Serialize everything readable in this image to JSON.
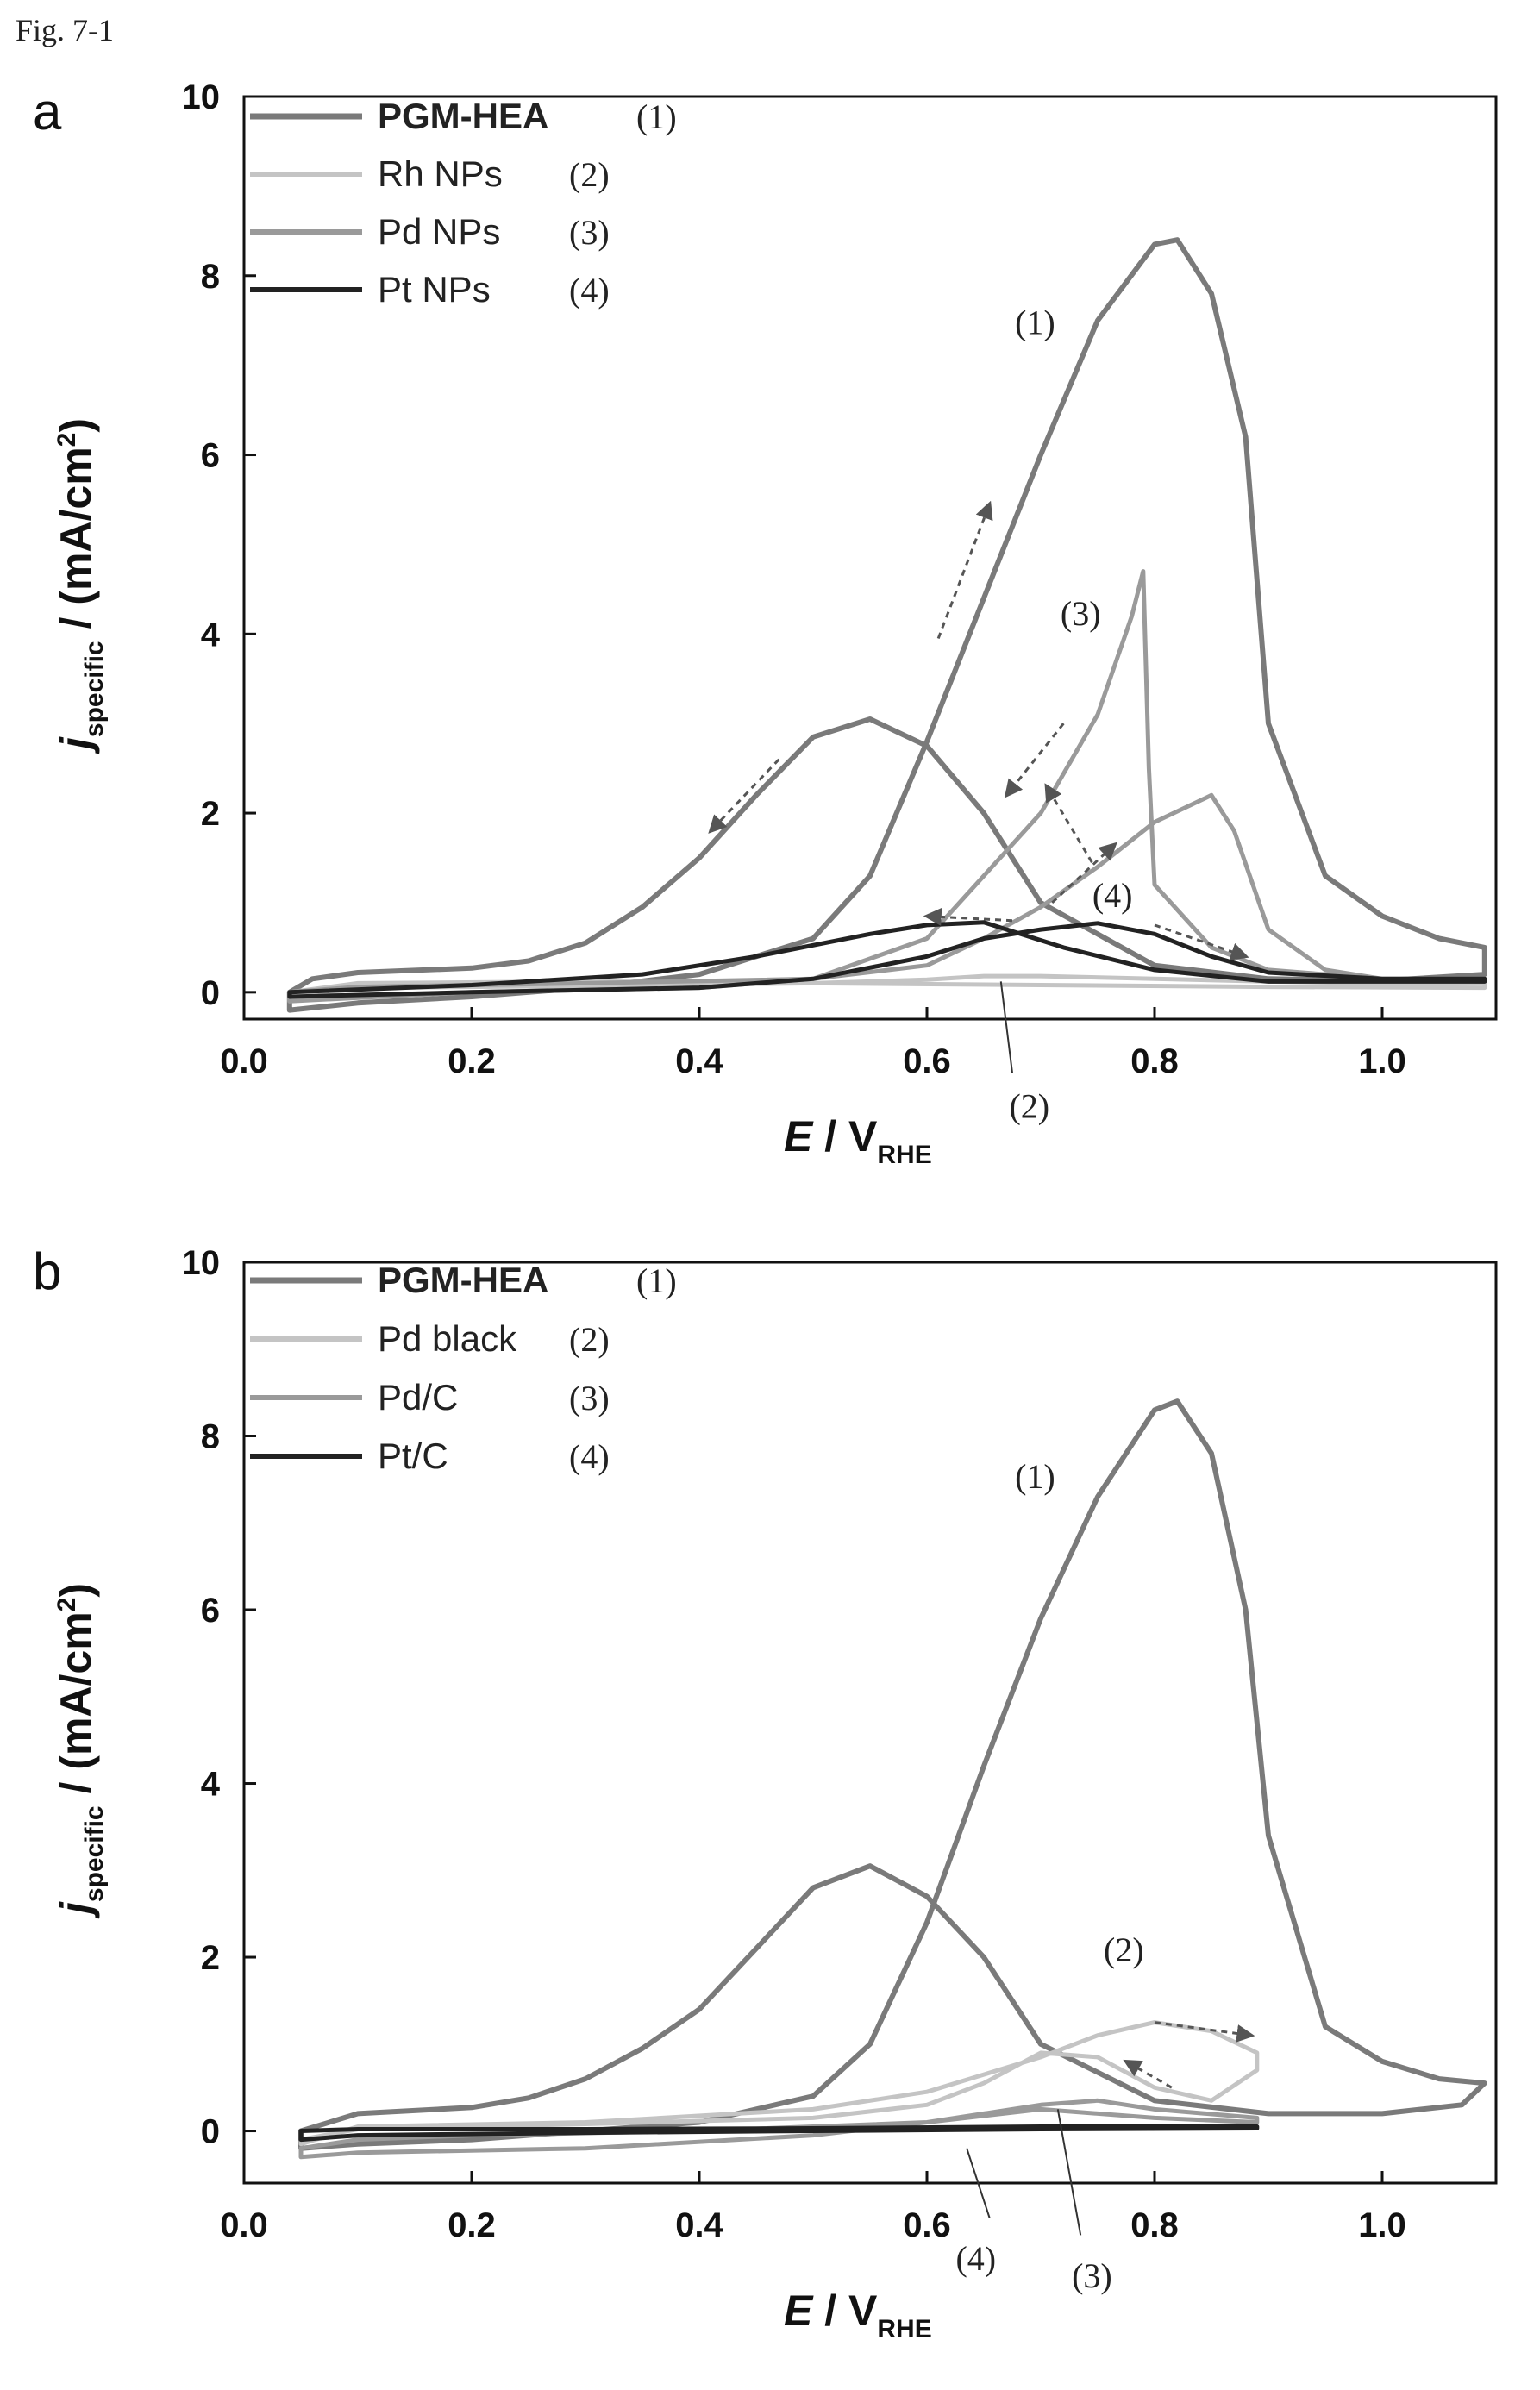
{
  "figure_label": "Fig. 7-1",
  "chart_data": [
    {
      "panel": "a",
      "type": "line",
      "xlabel": "E / V",
      "xlabel_sub": "RHE",
      "ylabel": "j",
      "ylabel_sub": "specific",
      "ylabel_unit": " / (mA/cm",
      "ylabel_sup": "2",
      "ylabel_close": ")",
      "xlim": [
        0.0,
        1.1
      ],
      "ylim": [
        -0.3,
        10
      ],
      "xticks": [
        "0.0",
        "0.2",
        "0.4",
        "0.6",
        "0.8",
        "1.0"
      ],
      "xtick_values": [
        0.0,
        0.2,
        0.4,
        0.6,
        0.8,
        1.0
      ],
      "yticks": [
        "0",
        "2",
        "4",
        "6",
        "8",
        "10"
      ],
      "ytick_values": [
        0,
        2,
        4,
        6,
        8,
        10
      ],
      "legend_position": "top-left",
      "series": [
        {
          "name": "PGM-HEA",
          "num": "(1)",
          "bold": true,
          "color": "#7a7a7a",
          "width": 6,
          "points": [
            [
              0.04,
              -0.2
            ],
            [
              0.1,
              -0.12
            ],
            [
              0.2,
              -0.05
            ],
            [
              0.3,
              0.05
            ],
            [
              0.4,
              0.2
            ],
            [
              0.5,
              0.6
            ],
            [
              0.55,
              1.3
            ],
            [
              0.6,
              2.8
            ],
            [
              0.65,
              4.4
            ],
            [
              0.7,
              6.0
            ],
            [
              0.75,
              7.5
            ],
            [
              0.8,
              8.35
            ],
            [
              0.82,
              8.4
            ],
            [
              0.85,
              7.8
            ],
            [
              0.88,
              6.2
            ],
            [
              0.9,
              3.0
            ],
            [
              0.95,
              1.3
            ],
            [
              1.0,
              0.85
            ],
            [
              1.05,
              0.6
            ],
            [
              1.09,
              0.5
            ],
            [
              1.09,
              0.2
            ],
            [
              1.0,
              0.13
            ],
            [
              0.9,
              0.15
            ],
            [
              0.8,
              0.3
            ],
            [
              0.7,
              1.0
            ],
            [
              0.65,
              2.0
            ],
            [
              0.6,
              2.75
            ],
            [
              0.55,
              3.05
            ],
            [
              0.5,
              2.85
            ],
            [
              0.45,
              2.2
            ],
            [
              0.4,
              1.5
            ],
            [
              0.35,
              0.95
            ],
            [
              0.3,
              0.55
            ],
            [
              0.25,
              0.35
            ],
            [
              0.2,
              0.27
            ],
            [
              0.1,
              0.22
            ],
            [
              0.06,
              0.15
            ],
            [
              0.04,
              0.0
            ]
          ]
        },
        {
          "name": "Rh NPs",
          "num": "(2)",
          "bold": false,
          "color": "#c4c4c4",
          "width": 5,
          "points": [
            [
              0.04,
              -0.1
            ],
            [
              0.1,
              0.05
            ],
            [
              0.3,
              0.07
            ],
            [
              0.5,
              0.1
            ],
            [
              0.6,
              0.14
            ],
            [
              0.65,
              0.18
            ],
            [
              0.7,
              0.18
            ],
            [
              0.8,
              0.15
            ],
            [
              0.9,
              0.12
            ],
            [
              1.0,
              0.1
            ],
            [
              1.09,
              0.1
            ],
            [
              1.09,
              0.05
            ],
            [
              0.9,
              0.06
            ],
            [
              0.7,
              0.08
            ],
            [
              0.5,
              0.1
            ],
            [
              0.3,
              0.12
            ],
            [
              0.1,
              0.1
            ],
            [
              0.04,
              0.0
            ]
          ]
        },
        {
          "name": "Pd NPs",
          "num": "(3)",
          "bold": false,
          "color": "#9a9a9a",
          "width": 5,
          "points": [
            [
              0.04,
              -0.1
            ],
            [
              0.2,
              0.0
            ],
            [
              0.4,
              0.05
            ],
            [
              0.5,
              0.15
            ],
            [
              0.6,
              0.6
            ],
            [
              0.65,
              1.3
            ],
            [
              0.7,
              2.0
            ],
            [
              0.75,
              3.1
            ],
            [
              0.78,
              4.2
            ],
            [
              0.79,
              4.7
            ],
            [
              0.795,
              2.5
            ],
            [
              0.8,
              1.2
            ],
            [
              0.85,
              0.5
            ],
            [
              0.9,
              0.25
            ],
            [
              1.0,
              0.15
            ],
            [
              1.09,
              0.15
            ],
            [
              1.09,
              0.12
            ],
            [
              1.0,
              0.15
            ],
            [
              0.95,
              0.25
            ],
            [
              0.9,
              0.7
            ],
            [
              0.87,
              1.8
            ],
            [
              0.85,
              2.2
            ],
            [
              0.8,
              1.9
            ],
            [
              0.75,
              1.4
            ],
            [
              0.7,
              0.95
            ],
            [
              0.65,
              0.6
            ],
            [
              0.6,
              0.3
            ],
            [
              0.5,
              0.15
            ],
            [
              0.3,
              0.1
            ],
            [
              0.1,
              0.06
            ],
            [
              0.04,
              0.0
            ]
          ]
        },
        {
          "name": "Pt NPs",
          "num": "(4)",
          "bold": false,
          "color": "#222222",
          "width": 5,
          "points": [
            [
              0.04,
              -0.05
            ],
            [
              0.2,
              0.0
            ],
            [
              0.4,
              0.05
            ],
            [
              0.5,
              0.15
            ],
            [
              0.6,
              0.4
            ],
            [
              0.65,
              0.6
            ],
            [
              0.7,
              0.7
            ],
            [
              0.75,
              0.77
            ],
            [
              0.8,
              0.65
            ],
            [
              0.85,
              0.4
            ],
            [
              0.9,
              0.22
            ],
            [
              1.0,
              0.15
            ],
            [
              1.09,
              0.15
            ],
            [
              1.09,
              0.12
            ],
            [
              0.9,
              0.12
            ],
            [
              0.8,
              0.25
            ],
            [
              0.72,
              0.5
            ],
            [
              0.65,
              0.78
            ],
            [
              0.6,
              0.75
            ],
            [
              0.55,
              0.65
            ],
            [
              0.45,
              0.4
            ],
            [
              0.35,
              0.2
            ],
            [
              0.2,
              0.08
            ],
            [
              0.04,
              0.0
            ]
          ]
        }
      ],
      "annotations": [
        {
          "text": "(1)",
          "x": 0.695,
          "y": 7.35
        },
        {
          "text": "(3)",
          "x": 0.735,
          "y": 4.1
        },
        {
          "text": "(4)",
          "x": 0.763,
          "y": 0.95
        },
        {
          "text": "(2)",
          "x": 0.69,
          "y": -1.4
        }
      ],
      "arrows": [
        {
          "from": [
            0.61,
            3.95
          ],
          "to": [
            0.655,
            5.45
          ],
          "style": "dashed"
        },
        {
          "from": [
            0.47,
            2.6
          ],
          "to": [
            0.41,
            1.8
          ],
          "style": "dashed"
        },
        {
          "from": [
            0.745,
            1.45
          ],
          "to": [
            0.705,
            2.3
          ],
          "style": "dashed"
        },
        {
          "from": [
            0.72,
            3.0
          ],
          "to": [
            0.67,
            2.2
          ],
          "style": "dashed"
        },
        {
          "from": [
            0.71,
            1.0
          ],
          "to": [
            0.765,
            1.65
          ],
          "style": "dashed"
        },
        {
          "from": [
            0.675,
            0.8
          ],
          "to": [
            0.6,
            0.85
          ],
          "style": "dashed"
        },
        {
          "from": [
            0.8,
            0.75
          ],
          "to": [
            0.88,
            0.4
          ],
          "style": "dashed"
        }
      ],
      "leader_lines": [
        {
          "from": [
            0.665,
            0.12
          ],
          "to": [
            0.675,
            -0.9
          ]
        }
      ]
    },
    {
      "panel": "b",
      "type": "line",
      "xlabel": "E / V",
      "xlabel_sub": "RHE",
      "ylabel": "j",
      "ylabel_sub": "specific",
      "ylabel_unit": " / (mA/cm",
      "ylabel_sup": "2",
      "ylabel_close": ")",
      "xlim": [
        0.0,
        1.1
      ],
      "ylim": [
        -0.6,
        10
      ],
      "xticks": [
        "0.0",
        "0.2",
        "0.4",
        "0.6",
        "0.8",
        "1.0"
      ],
      "xtick_values": [
        0.0,
        0.2,
        0.4,
        0.6,
        0.8,
        1.0
      ],
      "yticks": [
        "0",
        "2",
        "4",
        "6",
        "8",
        "10"
      ],
      "ytick_values": [
        0,
        2,
        4,
        6,
        8,
        10
      ],
      "legend_position": "top-left",
      "series": [
        {
          "name": "PGM-HEA",
          "num": "(1)",
          "bold": true,
          "color": "#7a7a7a",
          "width": 6,
          "points": [
            [
              0.05,
              -0.2
            ],
            [
              0.1,
              -0.15
            ],
            [
              0.2,
              -0.1
            ],
            [
              0.3,
              0.0
            ],
            [
              0.4,
              0.1
            ],
            [
              0.5,
              0.4
            ],
            [
              0.55,
              1.0
            ],
            [
              0.6,
              2.4
            ],
            [
              0.65,
              4.2
            ],
            [
              0.7,
              5.9
            ],
            [
              0.75,
              7.3
            ],
            [
              0.8,
              8.3
            ],
            [
              0.82,
              8.4
            ],
            [
              0.85,
              7.8
            ],
            [
              0.88,
              6.0
            ],
            [
              0.9,
              3.4
            ],
            [
              0.95,
              1.2
            ],
            [
              1.0,
              0.8
            ],
            [
              1.05,
              0.6
            ],
            [
              1.09,
              0.55
            ],
            [
              1.07,
              0.3
            ],
            [
              1.0,
              0.2
            ],
            [
              0.9,
              0.2
            ],
            [
              0.8,
              0.35
            ],
            [
              0.7,
              1.0
            ],
            [
              0.65,
              2.0
            ],
            [
              0.6,
              2.7
            ],
            [
              0.55,
              3.05
            ],
            [
              0.5,
              2.8
            ],
            [
              0.45,
              2.1
            ],
            [
              0.4,
              1.4
            ],
            [
              0.35,
              0.95
            ],
            [
              0.3,
              0.6
            ],
            [
              0.25,
              0.38
            ],
            [
              0.2,
              0.27
            ],
            [
              0.1,
              0.2
            ],
            [
              0.05,
              0.0
            ]
          ]
        },
        {
          "name": "Pd black",
          "num": "(2)",
          "bold": false,
          "color": "#c4c4c4",
          "width": 5,
          "points": [
            [
              0.05,
              -0.15
            ],
            [
              0.1,
              0.05
            ],
            [
              0.3,
              0.1
            ],
            [
              0.5,
              0.25
            ],
            [
              0.6,
              0.45
            ],
            [
              0.65,
              0.65
            ],
            [
              0.7,
              0.85
            ],
            [
              0.75,
              1.1
            ],
            [
              0.8,
              1.25
            ],
            [
              0.85,
              1.15
            ],
            [
              0.89,
              0.9
            ],
            [
              0.89,
              0.7
            ],
            [
              0.85,
              0.35
            ],
            [
              0.8,
              0.5
            ],
            [
              0.75,
              0.85
            ],
            [
              0.7,
              0.9
            ],
            [
              0.65,
              0.55
            ],
            [
              0.6,
              0.3
            ],
            [
              0.5,
              0.15
            ],
            [
              0.3,
              0.08
            ],
            [
              0.1,
              0.02
            ],
            [
              0.05,
              -0.1
            ]
          ]
        },
        {
          "name": "Pd/C",
          "num": "(3)",
          "bold": false,
          "color": "#9a9a9a",
          "width": 5,
          "points": [
            [
              0.05,
              -0.3
            ],
            [
              0.1,
              -0.25
            ],
            [
              0.3,
              -0.2
            ],
            [
              0.5,
              -0.05
            ],
            [
              0.6,
              0.1
            ],
            [
              0.7,
              0.3
            ],
            [
              0.75,
              0.35
            ],
            [
              0.8,
              0.25
            ],
            [
              0.89,
              0.15
            ],
            [
              0.89,
              0.1
            ],
            [
              0.8,
              0.15
            ],
            [
              0.7,
              0.25
            ],
            [
              0.6,
              0.1
            ],
            [
              0.4,
              0.0
            ],
            [
              0.2,
              -0.05
            ],
            [
              0.1,
              -0.1
            ],
            [
              0.05,
              -0.2
            ]
          ]
        },
        {
          "name": "Pt/C",
          "num": "(4)",
          "bold": false,
          "color": "#222222",
          "width": 5,
          "points": [
            [
              0.05,
              -0.1
            ],
            [
              0.1,
              -0.05
            ],
            [
              0.3,
              -0.02
            ],
            [
              0.5,
              0.0
            ],
            [
              0.7,
              0.02
            ],
            [
              0.89,
              0.03
            ],
            [
              0.89,
              0.05
            ],
            [
              0.7,
              0.05
            ],
            [
              0.5,
              0.03
            ],
            [
              0.3,
              0.02
            ],
            [
              0.1,
              0.02
            ],
            [
              0.05,
              0.0
            ]
          ]
        }
      ],
      "annotations": [
        {
          "text": "(1)",
          "x": 0.695,
          "y": 7.4
        },
        {
          "text": "(2)",
          "x": 0.773,
          "y": 1.95
        },
        {
          "text": "(4)",
          "x": 0.643,
          "y": -1.6
        },
        {
          "text": "(3)",
          "x": 0.745,
          "y": -1.8
        }
      ],
      "arrows": [
        {
          "from": [
            0.8,
            1.25
          ],
          "to": [
            0.885,
            1.1
          ],
          "style": "dashed"
        },
        {
          "from": [
            0.815,
            0.5
          ],
          "to": [
            0.775,
            0.8
          ],
          "style": "dashed"
        }
      ],
      "leader_lines": [
        {
          "from": [
            0.635,
            -0.2
          ],
          "to": [
            0.655,
            -1.0
          ]
        },
        {
          "from": [
            0.715,
            0.25
          ],
          "to": [
            0.735,
            -1.2
          ]
        }
      ]
    }
  ]
}
